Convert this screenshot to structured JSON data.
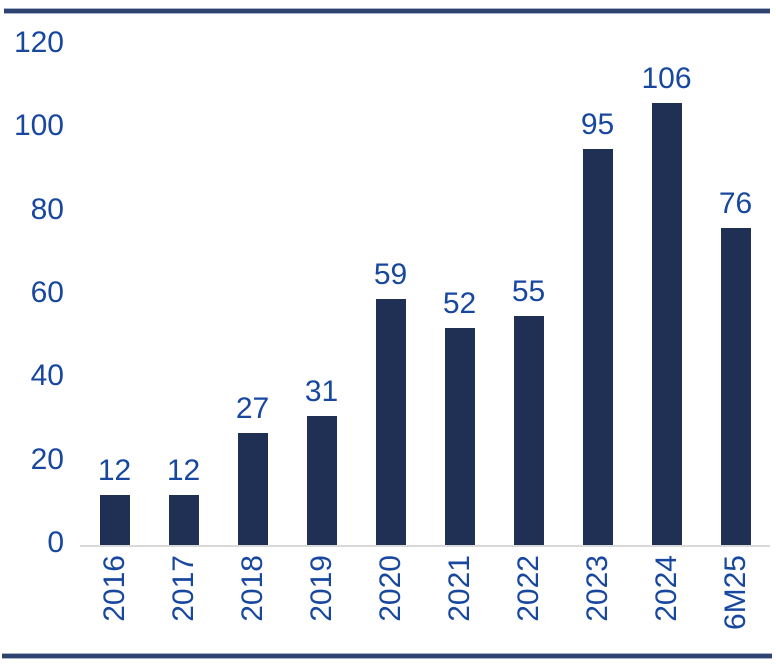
{
  "page": {
    "background": "#FFFFFF",
    "rule_core_color": "#2E436F",
    "rule_edge_color": "#A9B3C9"
  },
  "chart_data": {
    "type": "bar",
    "title": "",
    "xlabel": "",
    "ylabel": "",
    "categories": [
      "2016",
      "2017",
      "2018",
      "2019",
      "2020",
      "2021",
      "2022",
      "2023",
      "2024",
      "6M25"
    ],
    "values": [
      12,
      12,
      27,
      31,
      59,
      52,
      55,
      95,
      106,
      76
    ],
    "data_labels": [
      "12",
      "12",
      "27",
      "31",
      "59",
      "52",
      "55",
      "95",
      "106",
      "76"
    ],
    "ylim": [
      0,
      120
    ],
    "y_ticks": [
      0,
      20,
      40,
      60,
      80,
      100,
      120
    ],
    "grid": false,
    "legend": false,
    "x_label_rotation_deg": -90,
    "bar_color": "#1F3054",
    "label_color": "#17479E",
    "axis_line_color": "#D9D9D9"
  }
}
